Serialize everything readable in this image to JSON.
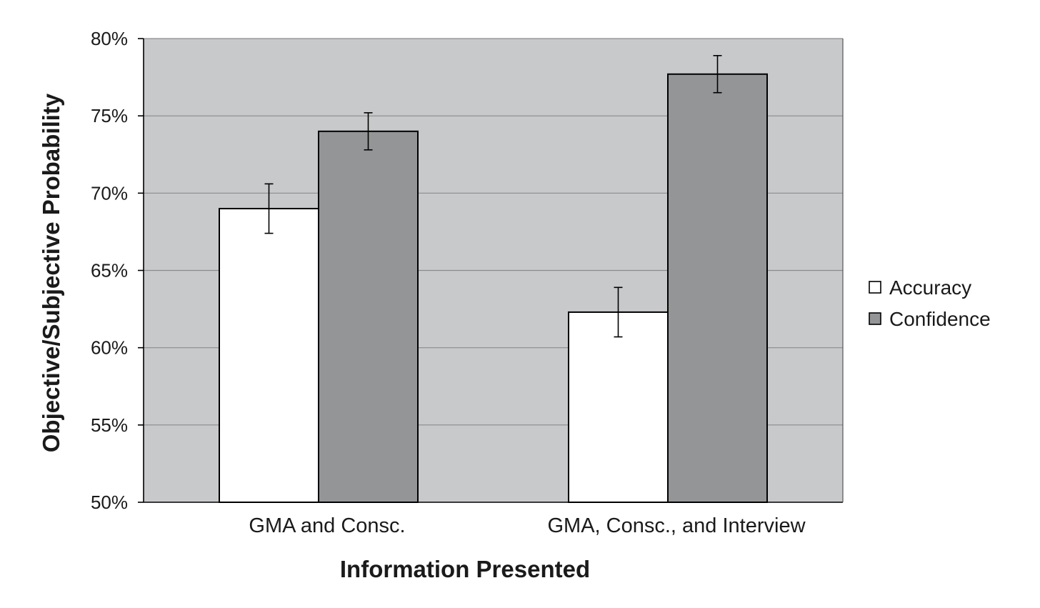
{
  "chart_data": {
    "type": "bar",
    "title": "",
    "xlabel": "Information Presented",
    "ylabel": "Objective/Subjective Probability",
    "categories": [
      "GMA and Consc.",
      "GMA, Consc., and Interview"
    ],
    "series": [
      {
        "name": "Accuracy",
        "values": [
          69.0,
          62.3
        ],
        "error": [
          1.6,
          1.6
        ],
        "color": "#ffffff"
      },
      {
        "name": "Confidence",
        "values": [
          74.0,
          77.7
        ],
        "error": [
          1.2,
          1.2
        ],
        "color": "#939597"
      }
    ],
    "ylim": [
      50,
      80
    ],
    "yticks": [
      50,
      55,
      60,
      65,
      70,
      75,
      80
    ],
    "ytick_labels": [
      "50%",
      "55%",
      "60%",
      "65%",
      "70%",
      "75%",
      "80%"
    ],
    "grid": true,
    "legend_position": "right",
    "plot_background": "#c8c9cb",
    "bar_outline": "#000000"
  }
}
